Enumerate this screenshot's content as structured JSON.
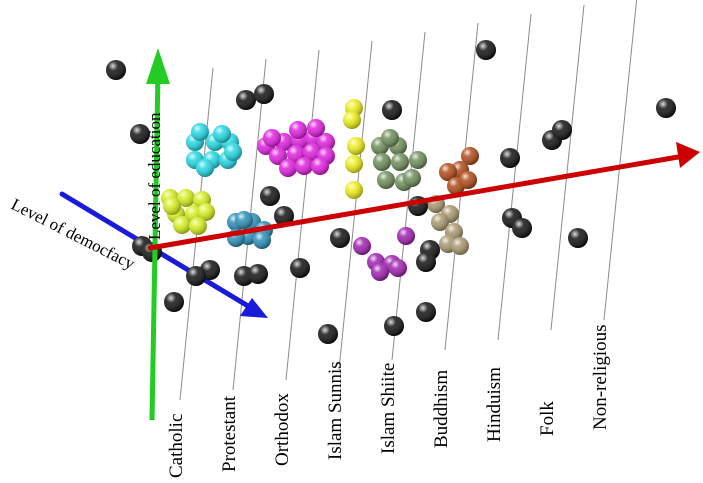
{
  "chart_data": {
    "type": "scatter",
    "dimensions": 3,
    "axes": {
      "x": {
        "label": "",
        "type": "categorical",
        "color": "#cc0000"
      },
      "y": {
        "label": "Level of education",
        "color": "#22cc22"
      },
      "z": {
        "label": "Level of democfacy",
        "color": "#1a1adb"
      }
    },
    "categories": [
      "Catholic",
      "Protestant",
      "Orthodox",
      "Islam Sunnis",
      "Islam Shiite",
      "Buddhism",
      "Hinduism",
      "Folk",
      "Non-religious"
    ],
    "cluster_colors": {
      "cyan": "#22d8e4",
      "yellow_green": "#d6ee1e",
      "steel_blue": "#2a8fb8",
      "magenta": "#e21ee0",
      "yellow": "#eeee1a",
      "olive_green": "#6e8e5a",
      "brown": "#b04a18",
      "tan": "#a89870",
      "purple": "#a020b0",
      "black": "#111111"
    },
    "series": [
      {
        "color_key": "cyan",
        "points": [
          [
            195,
            142
          ],
          [
            215,
            142
          ],
          [
            230,
            142
          ],
          [
            195,
            160
          ],
          [
            212,
            160
          ],
          [
            228,
            160
          ],
          [
            200,
            132
          ],
          [
            222,
            134
          ],
          [
            205,
            168
          ],
          [
            233,
            152
          ]
        ]
      },
      {
        "color_key": "yellow_green",
        "points": [
          [
            170,
            198
          ],
          [
            186,
            198
          ],
          [
            202,
            200
          ],
          [
            176,
            214
          ],
          [
            194,
            214
          ],
          [
            206,
            212
          ],
          [
            182,
            225
          ],
          [
            198,
            226
          ],
          [
            172,
            206
          ]
        ]
      },
      {
        "color_key": "steel_blue",
        "points": [
          [
            236,
            222
          ],
          [
            252,
            222
          ],
          [
            264,
            230
          ],
          [
            248,
            236
          ],
          [
            236,
            238
          ],
          [
            262,
            240
          ],
          [
            244,
            220
          ]
        ]
      },
      {
        "color_key": "magenta",
        "points": [
          [
            266,
            146
          ],
          [
            284,
            142
          ],
          [
            300,
            140
          ],
          [
            314,
            138
          ],
          [
            326,
            142
          ],
          [
            278,
            156
          ],
          [
            296,
            154
          ],
          [
            312,
            152
          ],
          [
            326,
            156
          ],
          [
            288,
            168
          ],
          [
            304,
            166
          ],
          [
            320,
            166
          ],
          [
            298,
            130
          ],
          [
            316,
            128
          ],
          [
            272,
            138
          ]
        ]
      },
      {
        "color_key": "yellow",
        "points": [
          [
            354,
            108
          ],
          [
            352,
            120
          ],
          [
            356,
            146
          ],
          [
            354,
            164
          ],
          [
            354,
            190
          ]
        ]
      },
      {
        "color_key": "olive_green",
        "points": [
          [
            380,
            146
          ],
          [
            398,
            146
          ],
          [
            382,
            162
          ],
          [
            400,
            162
          ],
          [
            386,
            180
          ],
          [
            404,
            182
          ],
          [
            418,
            160
          ],
          [
            412,
            178
          ],
          [
            390,
            138
          ]
        ]
      },
      {
        "color_key": "brown",
        "points": [
          [
            470,
            156
          ],
          [
            460,
            170
          ],
          [
            448,
            172
          ],
          [
            456,
            186
          ],
          [
            468,
            180
          ]
        ]
      },
      {
        "color_key": "tan",
        "points": [
          [
            436,
            204
          ],
          [
            450,
            214
          ],
          [
            440,
            222
          ],
          [
            454,
            232
          ],
          [
            448,
            244
          ],
          [
            460,
            246
          ]
        ]
      },
      {
        "color_key": "purple",
        "points": [
          [
            362,
            246
          ],
          [
            376,
            262
          ],
          [
            392,
            264
          ],
          [
            380,
            272
          ],
          [
            398,
            268
          ],
          [
            406,
            236
          ]
        ]
      },
      {
        "color_key": "black",
        "points": [
          [
            116,
            70
          ],
          [
            140,
            134
          ],
          [
            246,
            100
          ],
          [
            264,
            94
          ],
          [
            270,
            196
          ],
          [
            284,
            216
          ],
          [
            244,
            276
          ],
          [
            258,
            274
          ],
          [
            210,
            270
          ],
          [
            196,
            276
          ],
          [
            174,
            302
          ],
          [
            142,
            246
          ],
          [
            152,
            252
          ],
          [
            300,
            268
          ],
          [
            340,
            238
          ],
          [
            328,
            334
          ],
          [
            392,
            110
          ],
          [
            394,
            326
          ],
          [
            418,
            206
          ],
          [
            430,
            250
          ],
          [
            426,
            262
          ],
          [
            426,
            312
          ],
          [
            486,
            50
          ],
          [
            510,
            158
          ],
          [
            512,
            218
          ],
          [
            522,
            228
          ],
          [
            552,
            140
          ],
          [
            562,
            130
          ],
          [
            578,
            238
          ],
          [
            666,
            108
          ]
        ]
      }
    ]
  }
}
